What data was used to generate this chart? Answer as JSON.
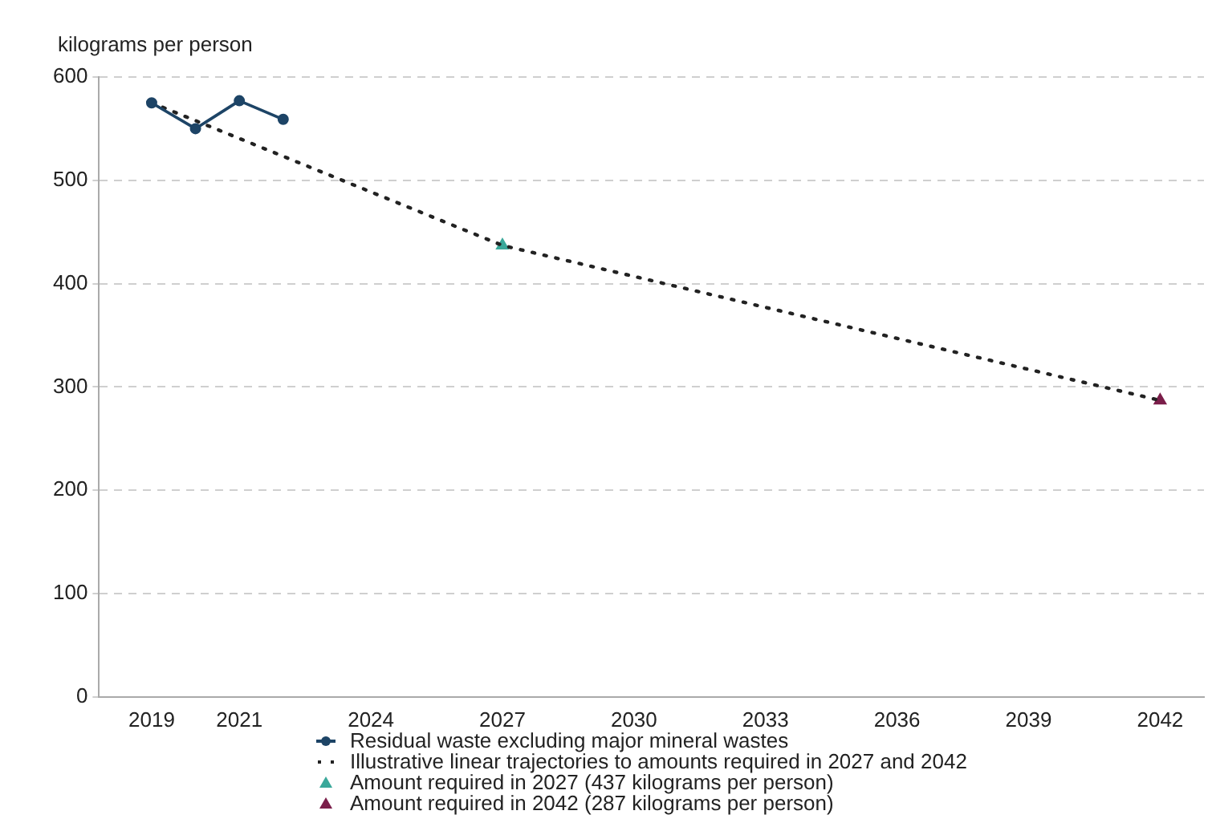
{
  "chart_data": {
    "type": "line",
    "ylabel": "kilograms per person",
    "xlim": [
      2017.8,
      2043
    ],
    "xticks": [
      2019,
      2021,
      2024,
      2027,
      2030,
      2033,
      2036,
      2039,
      2042
    ],
    "ylim": [
      0,
      600
    ],
    "yticks": [
      0,
      100,
      200,
      300,
      400,
      500,
      600
    ],
    "grid": "y",
    "legend": "bottom",
    "series": [
      {
        "name": "Residual waste excluding major mineral wastes",
        "type": "line",
        "color": "#1d4466",
        "marker": "circle",
        "line_style": "solid",
        "x": [
          2019,
          2020,
          2021,
          2022
        ],
        "values": [
          575,
          550,
          577,
          559
        ]
      },
      {
        "name": "Illustrative linear trajectories to amounts required in 2027 and 2042",
        "type": "line",
        "color": "#222222",
        "marker": "none",
        "line_style": "dotted",
        "x": [
          2019,
          2027,
          2042
        ],
        "values": [
          575,
          437,
          287
        ]
      },
      {
        "name": "Amount required in 2027 (437 kilograms per person)",
        "type": "scatter",
        "color": "#3aa89a",
        "marker": "triangle",
        "x": [
          2027
        ],
        "values": [
          437
        ]
      },
      {
        "name": "Amount required in 2042 (287 kilograms per person)",
        "type": "scatter",
        "color": "#7b1e4a",
        "marker": "triangle",
        "x": [
          2042
        ],
        "values": [
          287
        ]
      }
    ]
  }
}
